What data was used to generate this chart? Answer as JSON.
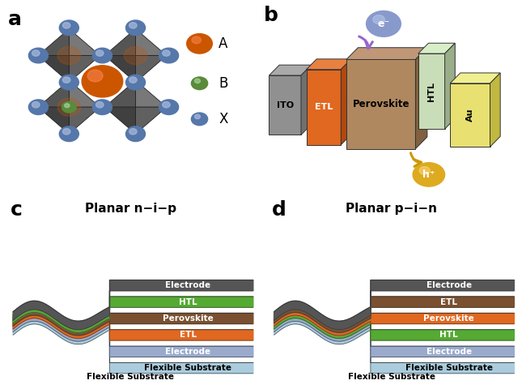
{
  "panel_labels": [
    "a",
    "b",
    "c",
    "d"
  ],
  "panel_label_fontsize": 18,
  "background_color": "#ffffff",
  "legend_a": {
    "A_color": "#cc5500",
    "B_color": "#5a8a3a",
    "X_color": "#5577aa"
  },
  "panel_b": {
    "ITO_color": "#888888",
    "ETL_color": "#e06820",
    "Perovskite_color": "#b08860",
    "HTL_color": "#c8ddb8",
    "Au_color": "#e8e070",
    "electron_color": "#8899cc",
    "hole_color": "#ddaa20",
    "arrow_electron_color": "#9966cc",
    "arrow_hole_color": "#cc9900"
  },
  "panel_c": {
    "title": "Planar n−i−p",
    "layer_names": [
      "Electrode",
      "HTL",
      "Perovskite",
      "ETL",
      "Electrode",
      "Flexible Substrate"
    ],
    "colors": [
      "#555555",
      "#55aa33",
      "#7a5030",
      "#e06820",
      "#99aacc",
      "#aaccdd"
    ],
    "text_colors": [
      "white",
      "white",
      "white",
      "white",
      "white",
      "black"
    ]
  },
  "panel_d": {
    "title": "Planar p−i−n",
    "layer_names": [
      "Electrode",
      "ETL",
      "Perovskite",
      "HTL",
      "Electrode",
      "Flexible Substrate"
    ],
    "colors": [
      "#555555",
      "#7a5030",
      "#e06820",
      "#55aa33",
      "#99aacc",
      "#aaccdd"
    ],
    "text_colors": [
      "white",
      "white",
      "white",
      "white",
      "white",
      "black"
    ]
  }
}
